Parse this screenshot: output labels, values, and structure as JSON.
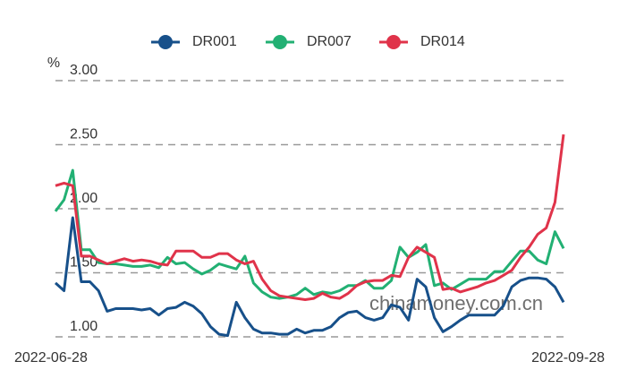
{
  "chart_data": {
    "type": "line",
    "y_label": "%",
    "annotation": "chinamoney.com.cn",
    "categories": [
      "2022-06-28",
      null,
      null,
      null,
      null,
      null,
      null,
      null,
      null,
      null,
      null,
      null,
      null,
      null,
      null,
      null,
      null,
      null,
      null,
      null,
      null,
      null,
      null,
      null,
      null,
      null,
      null,
      null,
      null,
      null,
      null,
      null,
      null,
      null,
      null,
      null,
      null,
      null,
      null,
      null,
      null,
      null,
      null,
      null,
      null,
      null,
      null,
      null,
      null,
      null,
      null,
      null,
      null,
      null,
      null,
      null,
      null,
      null,
      null,
      "2022-09-28"
    ],
    "series": [
      {
        "name": "DR001",
        "color": "#17508a",
        "values": [
          1.42,
          1.36,
          1.93,
          1.43,
          1.43,
          1.36,
          1.2,
          1.22,
          1.22,
          1.22,
          1.21,
          1.22,
          1.17,
          1.22,
          1.23,
          1.27,
          1.24,
          1.18,
          1.08,
          1.02,
          1.01,
          1.27,
          1.15,
          1.06,
          1.03,
          1.03,
          1.02,
          1.02,
          1.06,
          1.03,
          1.05,
          1.05,
          1.08,
          1.15,
          1.19,
          1.2,
          1.15,
          1.13,
          1.15,
          1.25,
          1.23,
          1.13,
          1.45,
          1.39,
          1.15,
          1.04,
          1.08,
          1.13,
          1.17,
          1.17,
          1.17,
          1.17,
          1.24,
          1.39,
          1.44,
          1.46,
          1.46,
          1.45,
          1.39,
          1.27
        ]
      },
      {
        "name": "DR007",
        "color": "#22b073",
        "values": [
          1.98,
          2.07,
          2.3,
          1.68,
          1.68,
          1.58,
          1.57,
          1.57,
          1.56,
          1.55,
          1.55,
          1.56,
          1.54,
          1.62,
          1.57,
          1.58,
          1.53,
          1.49,
          1.52,
          1.57,
          1.55,
          1.53,
          1.63,
          1.42,
          1.35,
          1.31,
          1.3,
          1.31,
          1.33,
          1.38,
          1.33,
          1.35,
          1.34,
          1.36,
          1.4,
          1.4,
          1.44,
          1.38,
          1.38,
          1.44,
          1.7,
          1.62,
          1.66,
          1.72,
          1.4,
          1.42,
          1.37,
          1.41,
          1.45,
          1.45,
          1.45,
          1.51,
          1.51,
          1.59,
          1.67,
          1.67,
          1.6,
          1.57,
          1.82,
          1.69
        ]
      },
      {
        "name": "DR014",
        "color": "#e0334a",
        "values": [
          2.18,
          2.2,
          2.18,
          1.63,
          1.63,
          1.6,
          1.57,
          1.59,
          1.61,
          1.59,
          1.6,
          1.59,
          1.57,
          1.56,
          1.67,
          1.67,
          1.67,
          1.62,
          1.62,
          1.65,
          1.65,
          1.6,
          1.57,
          1.59,
          1.45,
          1.36,
          1.32,
          1.31,
          1.3,
          1.29,
          1.3,
          1.34,
          1.31,
          1.3,
          1.34,
          1.4,
          1.43,
          1.44,
          1.44,
          1.48,
          1.47,
          1.62,
          1.7,
          1.66,
          1.62,
          1.37,
          1.38,
          1.35,
          1.37,
          1.39,
          1.42,
          1.44,
          1.48,
          1.52,
          1.62,
          1.7,
          1.8,
          1.85,
          2.05,
          2.58
        ]
      }
    ],
    "ylim": [
      1,
      3
    ],
    "yticks": [
      {
        "value": 1,
        "label": "1.00"
      },
      {
        "value": 1.5,
        "label": "1.50"
      },
      {
        "value": 2,
        "label": "2.00"
      },
      {
        "value": 2.5,
        "label": "2.50"
      },
      {
        "value": 3,
        "label": "3.00"
      }
    ],
    "grid": true,
    "legend": "top"
  }
}
